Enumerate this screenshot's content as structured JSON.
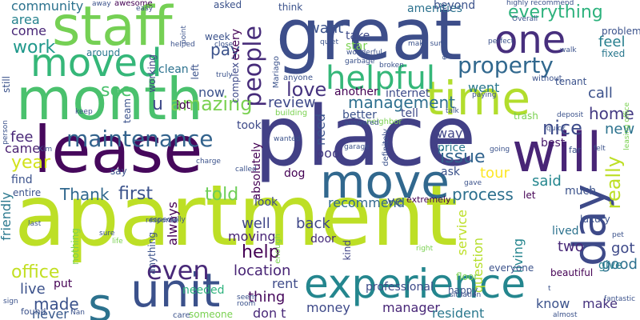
{
  "words": [
    {
      "text": "apartment",
      "color": "#bddf26"
    },
    {
      "text": "place",
      "color": "#424086"
    },
    {
      "text": "lease",
      "color": "#46085c"
    },
    {
      "text": "great",
      "color": "#3d4e8a"
    },
    {
      "text": "month",
      "color": "#4ac16d"
    },
    {
      "text": "experience",
      "color": "#24868e"
    },
    {
      "text": "unit",
      "color": "#3b518b"
    },
    {
      "text": "staff",
      "color": "#75d054"
    },
    {
      "text": "time",
      "color": "#b2dd2d"
    },
    {
      "text": "moved",
      "color": "#35b779"
    },
    {
      "text": "move",
      "color": "#31688e"
    },
    {
      "text": "will",
      "color": "#482576"
    },
    {
      "text": "day",
      "color": "#3e4a89"
    },
    {
      "text": "one",
      "color": "#472f7d"
    },
    {
      "text": "s",
      "color": "#2c728e"
    },
    {
      "text": "helpful",
      "color": "#35b779"
    },
    {
      "text": "people",
      "color": "#472c7a"
    },
    {
      "text": "maintenance",
      "color": "#33638d"
    },
    {
      "text": "even",
      "color": "#482878"
    },
    {
      "text": "property",
      "color": "#31688e"
    },
    {
      "text": "everything",
      "color": "#2db27d"
    },
    {
      "text": "amazing",
      "color": "#7ad151"
    },
    {
      "text": "management",
      "color": "#2e6f8e"
    },
    {
      "text": "issue",
      "color": "#32648e"
    },
    {
      "text": "really",
      "color": "#bddf26"
    },
    {
      "text": "nice",
      "color": "#3e4c8a"
    },
    {
      "text": "love",
      "color": "#46337f"
    },
    {
      "text": "process",
      "color": "#2d708e"
    },
    {
      "text": "first",
      "color": "#3b528b"
    },
    {
      "text": "told",
      "color": "#6ece58"
    },
    {
      "text": "work",
      "color": "#1f988b"
    },
    {
      "text": "Thank",
      "color": "#31688e"
    },
    {
      "text": "help",
      "color": "#440154"
    },
    {
      "text": "made",
      "color": "#3b528b"
    },
    {
      "text": "office",
      "color": "#c2df23"
    },
    {
      "text": "year",
      "color": "#d2e21b"
    },
    {
      "text": "location",
      "color": "#482475"
    },
    {
      "text": "moving",
      "color": "#482475"
    },
    {
      "text": "well",
      "color": "#404688"
    },
    {
      "text": "home",
      "color": "#443a83"
    },
    {
      "text": "see",
      "color": "#4ac16d"
    },
    {
      "text": "pay",
      "color": "#3b528b"
    },
    {
      "text": "want",
      "color": "#3b528b"
    },
    {
      "text": "community",
      "color": "#2c728e"
    },
    {
      "text": "area",
      "color": "#26828e"
    },
    {
      "text": "come",
      "color": "#482677"
    },
    {
      "text": "review",
      "color": "#3e4989"
    },
    {
      "text": "feel",
      "color": "#277f8e"
    },
    {
      "text": "call",
      "color": "#3b518b"
    },
    {
      "text": "went",
      "color": "#2a788e"
    },
    {
      "text": "new",
      "color": "#2c728e"
    },
    {
      "text": "good",
      "color": "#2d708e"
    },
    {
      "text": "got",
      "color": "#3e4989"
    },
    {
      "text": "two",
      "color": "#482878"
    },
    {
      "text": "fee",
      "color": "#482677"
    },
    {
      "text": "came",
      "color": "#481f70"
    },
    {
      "text": "back",
      "color": "#3f4788"
    },
    {
      "text": "always",
      "color": "#440154"
    },
    {
      "text": "said",
      "color": "#24868e"
    },
    {
      "text": "tour",
      "color": "#fde725"
    },
    {
      "text": "living",
      "color": "#25858e"
    },
    {
      "text": "friendly",
      "color": "#2a788e"
    },
    {
      "text": "live",
      "color": "#3b518b"
    },
    {
      "text": "rent",
      "color": "#3e4a89"
    },
    {
      "text": "thing",
      "color": "#46085c"
    },
    {
      "text": "don t",
      "color": "#482878"
    },
    {
      "text": "money",
      "color": "#3e4989"
    },
    {
      "text": "manager",
      "color": "#482677"
    },
    {
      "text": "resident",
      "color": "#2a788e"
    },
    {
      "text": "know",
      "color": "#3b528b"
    },
    {
      "text": "make",
      "color": "#46337f"
    },
    {
      "text": "never",
      "color": "#38598c"
    },
    {
      "text": "service",
      "color": "#bddf26"
    },
    {
      "text": "question",
      "color": "#b5de2b"
    },
    {
      "text": "needed",
      "color": "#2db27d"
    },
    {
      "text": "professional",
      "color": "#3e4c8a"
    },
    {
      "text": "recommend",
      "color": "#31688e"
    },
    {
      "text": "find",
      "color": "#3b528b"
    },
    {
      "text": "ask",
      "color": "#3b528b"
    },
    {
      "text": "way",
      "color": "#404688"
    },
    {
      "text": "price",
      "color": "#2a788e"
    },
    {
      "text": "best",
      "color": "#481a6c"
    },
    {
      "text": "pool",
      "color": "#443a83"
    },
    {
      "text": "dog",
      "color": "#440154"
    },
    {
      "text": "door",
      "color": "#472c7a"
    },
    {
      "text": "look",
      "color": "#3e4989"
    },
    {
      "text": "kind",
      "color": "#414487"
    },
    {
      "text": "much",
      "color": "#3b528b"
    },
    {
      "text": "lived",
      "color": "#2c728e"
    },
    {
      "text": "give",
      "color": "#277f8e"
    },
    {
      "text": "put",
      "color": "#440154"
    },
    {
      "text": "took",
      "color": "#3e4a89"
    },
    {
      "text": "need",
      "color": "#3b528b"
    },
    {
      "text": "absolutely",
      "color": "#440154"
    },
    {
      "text": "ve",
      "color": "#3b528b"
    },
    {
      "text": "tell",
      "color": "#3e4a89"
    },
    {
      "text": "better",
      "color": "#3b528b"
    },
    {
      "text": "another",
      "color": "#440154"
    },
    {
      "text": "internet",
      "color": "#3e4c8a"
    },
    {
      "text": "amenities",
      "color": "#2c728e"
    },
    {
      "text": "take",
      "color": "#3e4a89"
    },
    {
      "text": "star",
      "color": "#7ad151"
    },
    {
      "text": "think",
      "color": "#3b528b"
    },
    {
      "text": "asked",
      "color": "#3b528b"
    },
    {
      "text": "beyond",
      "color": "#3b528b"
    },
    {
      "text": "week",
      "color": "#3b528b"
    },
    {
      "text": "every",
      "color": "#440154"
    },
    {
      "text": "complex",
      "color": "#3e4989"
    },
    {
      "text": "clean",
      "color": "#2c728e"
    },
    {
      "text": "working",
      "color": "#414487"
    },
    {
      "text": "around",
      "color": "#2a788e"
    },
    {
      "text": "team",
      "color": "#3b528b"
    },
    {
      "text": "lot",
      "color": "#440154"
    },
    {
      "text": "now",
      "color": "#3b528b"
    },
    {
      "text": "u",
      "color": "#3e4989"
    },
    {
      "text": "left",
      "color": "#3b528b"
    },
    {
      "text": "still",
      "color": "#3b528b"
    },
    {
      "text": "awesome",
      "color": "#440154"
    },
    {
      "text": "tenant",
      "color": "#3b528b"
    },
    {
      "text": "trash",
      "color": "#7ad151"
    },
    {
      "text": "fixed",
      "color": "#2a788e"
    },
    {
      "text": "problem",
      "color": "#3b528b"
    },
    {
      "text": "entire",
      "color": "#3b528b"
    },
    {
      "text": "say",
      "color": "#3b528b"
    },
    {
      "text": "everyone",
      "color": "#3b528b"
    },
    {
      "text": "nothing",
      "color": "#7ad151"
    },
    {
      "text": "anything",
      "color": "#3b528b"
    },
    {
      "text": "extremely",
      "color": "#440154"
    },
    {
      "text": "luxury",
      "color": "#3b528b"
    },
    {
      "text": "beautiful",
      "color": "#440154"
    },
    {
      "text": "happy",
      "color": "#3b528b"
    },
    {
      "text": "floor",
      "color": "#7ad151"
    },
    {
      "text": "someone",
      "color": "#7ad151"
    },
    {
      "text": "care",
      "color": "#3b528b"
    },
    {
      "text": "let",
      "color": "#440154"
    },
    {
      "text": "far",
      "color": "#3b528b"
    },
    {
      "text": "without",
      "color": "#3b528b"
    },
    {
      "text": "anyone",
      "color": "#3b528b"
    },
    {
      "text": "building",
      "color": "#7ad151"
    },
    {
      "text": "definitely",
      "color": "#3b528b"
    },
    {
      "text": "neighbor",
      "color": "#7ad151"
    },
    {
      "text": "enough",
      "color": "#7ad151"
    },
    {
      "text": "especially",
      "color": "#3b528b"
    },
    {
      "text": "leasing office",
      "color": "#7ad151"
    },
    {
      "text": "highly recommend",
      "color": "#3b528b"
    },
    {
      "text": "make sure",
      "color": "#3b528b"
    },
    {
      "text": "wonderful",
      "color": "#3b528b"
    },
    {
      "text": "garbage",
      "color": "#3b528b"
    },
    {
      "text": "broken",
      "color": "#3b528b"
    },
    {
      "text": "paying",
      "color": "#3b528b"
    },
    {
      "text": "quick",
      "color": "#3b528b"
    },
    {
      "text": "deposit",
      "color": "#3b528b"
    },
    {
      "text": "walk",
      "color": "#3b528b"
    },
    {
      "text": "perfect",
      "color": "#3b528b"
    },
    {
      "text": "email",
      "color": "#3b528b"
    },
    {
      "text": "quiet",
      "color": "#3b528b"
    },
    {
      "text": "helped",
      "color": "#3b528b"
    },
    {
      "text": "close",
      "color": "#3b528b"
    },
    {
      "text": "truly",
      "color": "#3b528b"
    },
    {
      "text": "easy",
      "color": "#3b528b"
    },
    {
      "text": "away",
      "color": "#3b528b"
    },
    {
      "text": "Overall",
      "color": "#3b528b"
    },
    {
      "text": "point",
      "color": "#3b528b"
    },
    {
      "text": "wanted",
      "color": "#3b528b"
    },
    {
      "text": "answered",
      "color": "#3b528b"
    },
    {
      "text": "garage",
      "color": "#3b528b"
    },
    {
      "text": "talk",
      "color": "#3b528b"
    },
    {
      "text": "going",
      "color": "#3b528b"
    },
    {
      "text": "felt",
      "color": "#3b528b"
    },
    {
      "text": "charge",
      "color": "#3b528b"
    },
    {
      "text": "called",
      "color": "#3b528b"
    },
    {
      "text": "gave",
      "color": "#3b528b"
    },
    {
      "text": "response",
      "color": "#3b528b"
    },
    {
      "text": "sure",
      "color": "#3b528b"
    },
    {
      "text": "life",
      "color": "#7ad151"
    },
    {
      "text": "last",
      "color": "#3b528b"
    },
    {
      "text": "pet",
      "color": "#3b528b"
    },
    {
      "text": "fantastic",
      "color": "#3b528b"
    },
    {
      "text": "almost",
      "color": "#3b528b"
    },
    {
      "text": "situation",
      "color": "#3b528b"
    },
    {
      "text": "seem",
      "color": "#3b528b"
    },
    {
      "text": "room",
      "color": "#3b528b"
    },
    {
      "text": "right",
      "color": "#7ad151"
    },
    {
      "text": "Kim",
      "color": "#3b528b"
    },
    {
      "text": "keep",
      "color": "#3b528b"
    },
    {
      "text": "person",
      "color": "#3b528b"
    },
    {
      "text": "sign",
      "color": "#3b528b"
    },
    {
      "text": "found",
      "color": "#3b528b"
    },
    {
      "text": "Nan",
      "color": "#3b528b"
    },
    {
      "text": "Mariago",
      "color": "#3b528b"
    },
    {
      "text": "t",
      "color": "#3b528b"
    }
  ]
}
